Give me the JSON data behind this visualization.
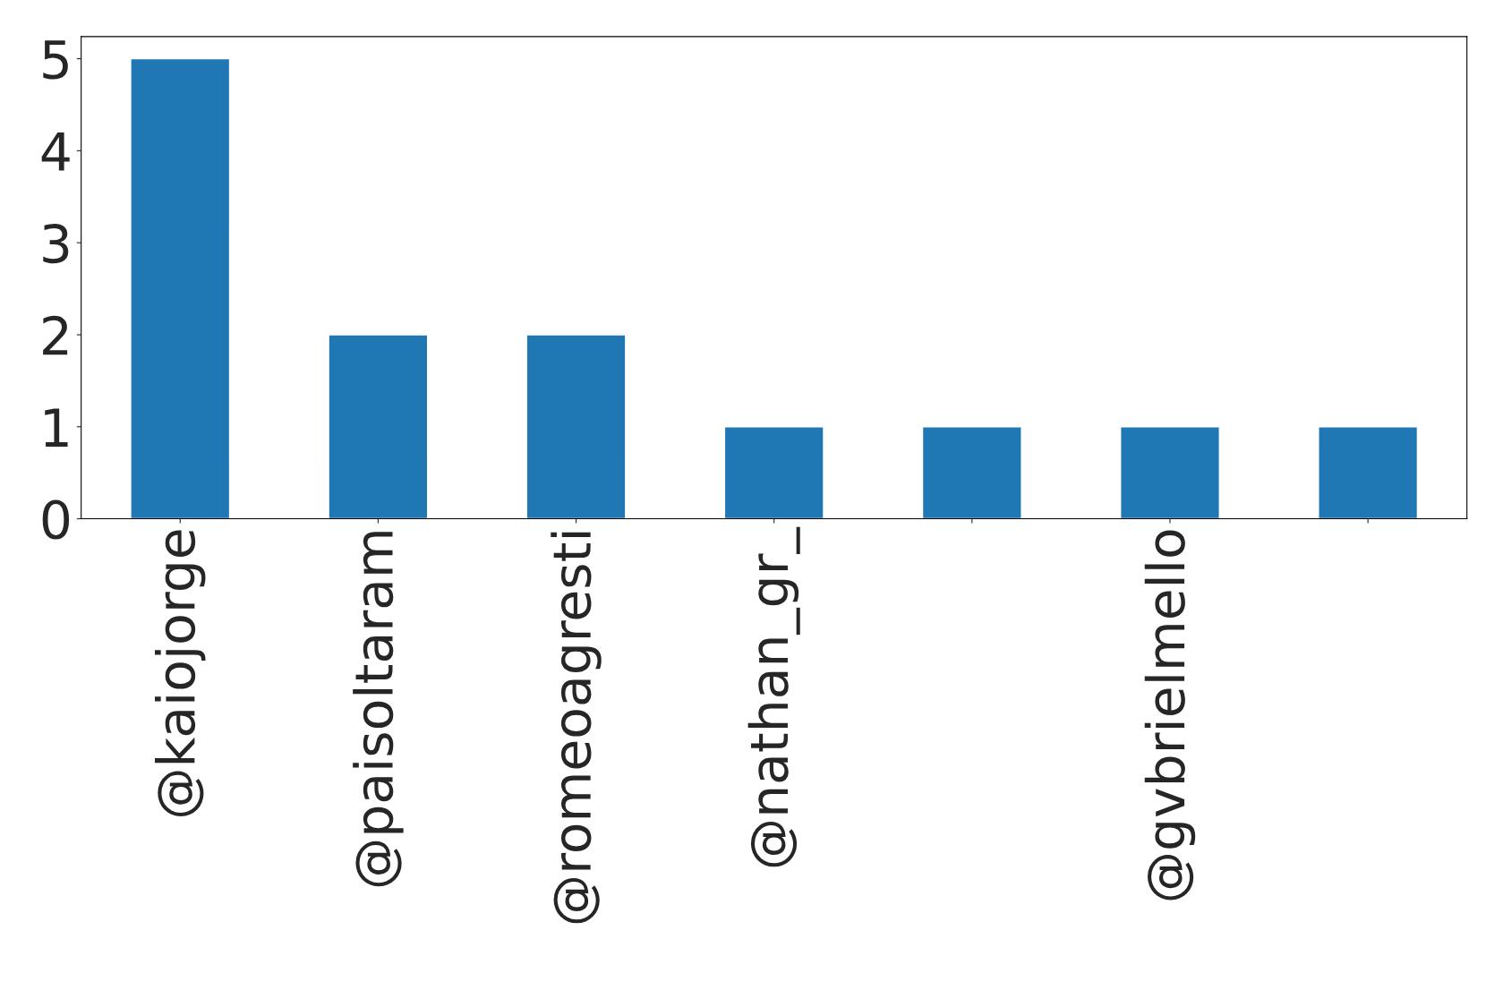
{
  "chart_data": {
    "type": "bar",
    "categories": [
      "@kaiojorge",
      "@paisoltaram",
      "@romeoagresti",
      "@nathan_gr_",
      null,
      "@gvbrielmello",
      null
    ],
    "values": [
      5,
      2,
      2,
      1,
      1,
      1,
      1
    ],
    "color": "#1f77b4",
    "ylim": [
      0,
      5.24
    ],
    "yticks": [
      0,
      1,
      2,
      3,
      4,
      5
    ],
    "grid": false,
    "legend": false
  }
}
